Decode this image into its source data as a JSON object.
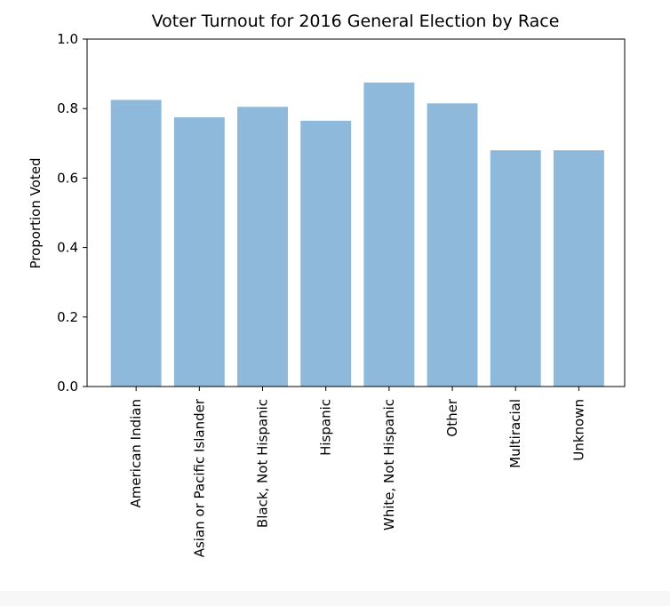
{
  "chart_data": {
    "type": "bar",
    "title": "Voter Turnout for 2016 General Election by Race",
    "xlabel": "",
    "ylabel": "Proportion Voted",
    "categories": [
      "American Indian",
      "Asian or Pacific Islander",
      "Black, Not Hispanic",
      "Hispanic",
      "White, Not Hispanic",
      "Other",
      "Multiracial",
      "Unknown"
    ],
    "values": [
      0.825,
      0.775,
      0.805,
      0.765,
      0.875,
      0.815,
      0.68,
      0.68
    ],
    "ylim": [
      0,
      1.0
    ],
    "yticks": [
      "0.0",
      "0.2",
      "0.4",
      "0.6",
      "0.8",
      "1.0"
    ],
    "grid": false,
    "bar_color": "#8fb9da"
  }
}
